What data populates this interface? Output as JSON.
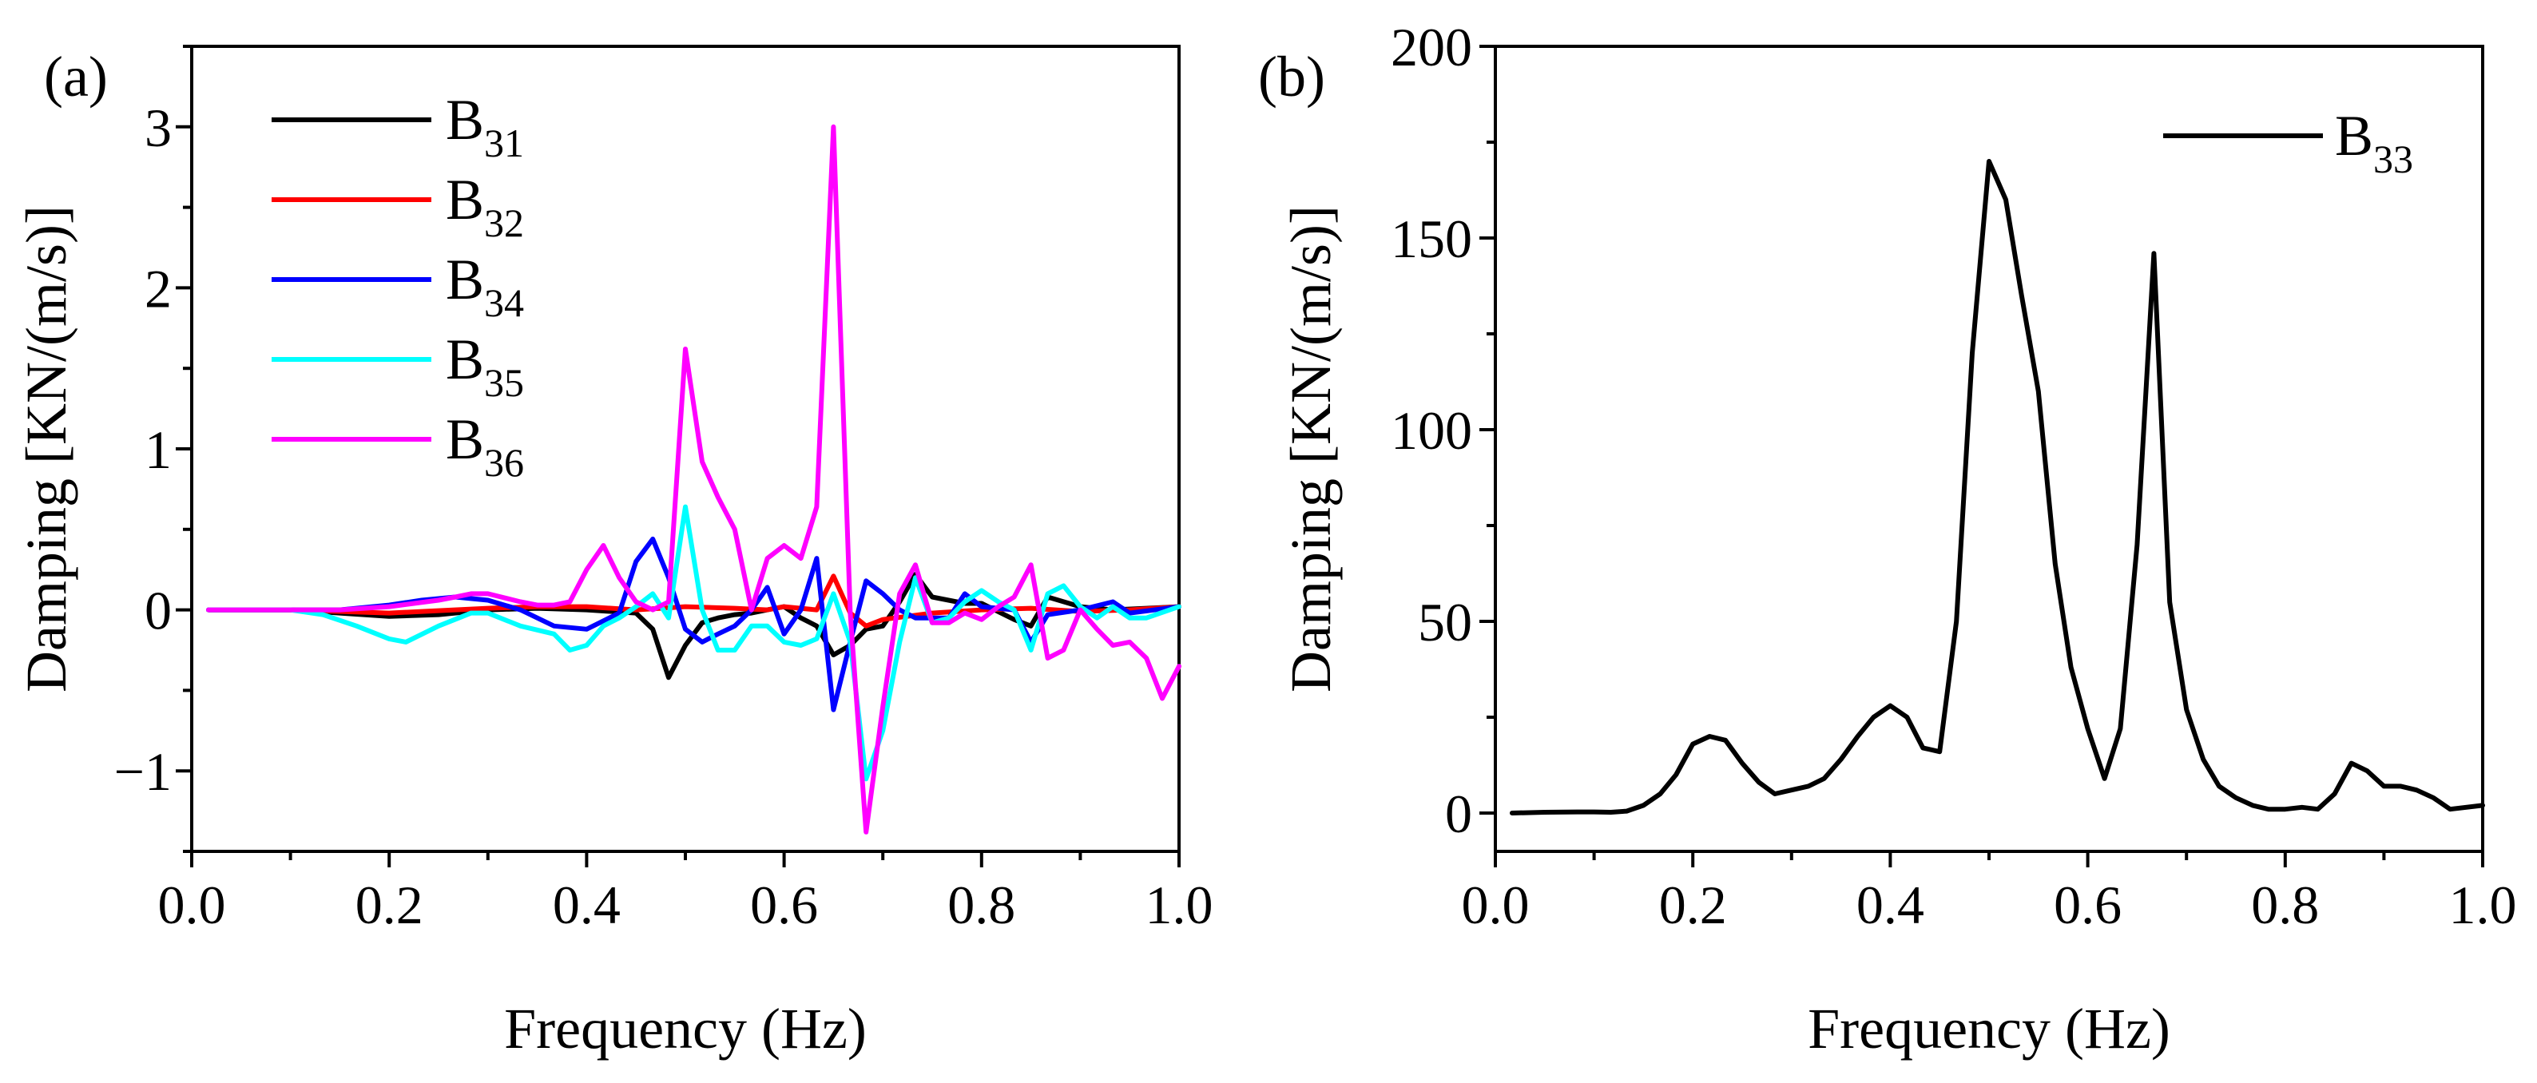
{
  "chart_data": [
    {
      "panel": "(a)",
      "type": "line",
      "xlabel": "Frequency (Hz)",
      "ylabel": "Damping [KN/(m/s)]",
      "xlim": [
        0.0,
        1.0
      ],
      "ylim": [
        -1.5,
        3.5
      ],
      "xticks": [
        "0.0",
        "0.2",
        "0.4",
        "0.6",
        "0.8",
        "1.0"
      ],
      "yticks": [
        "−1",
        "0",
        "1",
        "2",
        "3"
      ],
      "ytick_values": [
        -1,
        0,
        1,
        2,
        3
      ],
      "xtick_values": [
        0.0,
        0.2,
        0.4,
        0.6,
        0.8,
        1.0
      ],
      "legend_position": "top-left",
      "series": [
        {
          "name": "B31",
          "base": "B",
          "sub": "31",
          "color": "#000000",
          "x": [
            0.017,
            0.1,
            0.15,
            0.2,
            0.25,
            0.3,
            0.35,
            0.4,
            0.45,
            0.467,
            0.483,
            0.5,
            0.517,
            0.533,
            0.55,
            0.567,
            0.583,
            0.6,
            0.617,
            0.633,
            0.65,
            0.667,
            0.683,
            0.7,
            0.717,
            0.733,
            0.75,
            0.783,
            0.8,
            0.833,
            0.85,
            0.867,
            0.9,
            0.933,
            0.967,
            1.0
          ],
          "values": [
            0,
            0,
            -0.02,
            -0.04,
            -0.03,
            0.0,
            0.01,
            0.0,
            -0.02,
            -0.12,
            -0.42,
            -0.22,
            -0.08,
            -0.05,
            -0.03,
            -0.02,
            0.0,
            0.02,
            -0.05,
            -0.1,
            -0.28,
            -0.22,
            -0.12,
            -0.1,
            0.05,
            0.22,
            0.08,
            0.04,
            0.04,
            -0.06,
            -0.1,
            0.08,
            0.02,
            0.0,
            0.01,
            0.02
          ]
        },
        {
          "name": "B32",
          "base": "B",
          "sub": "32",
          "color": "#ff0000",
          "x": [
            0.017,
            0.1,
            0.2,
            0.3,
            0.35,
            0.4,
            0.45,
            0.5,
            0.55,
            0.583,
            0.6,
            0.633,
            0.65,
            0.667,
            0.683,
            0.7,
            0.75,
            0.8,
            0.85,
            0.9,
            0.95,
            1.0
          ],
          "values": [
            0,
            0,
            -0.02,
            0.01,
            0.02,
            0.02,
            0.0,
            0.02,
            0.01,
            0.0,
            0.02,
            0.0,
            0.21,
            -0.02,
            -0.1,
            -0.06,
            -0.02,
            0.0,
            0.01,
            -0.01,
            0.0,
            0.02
          ]
        },
        {
          "name": "B34",
          "base": "B",
          "sub": "34",
          "color": "#0000ff",
          "x": [
            0.017,
            0.1,
            0.15,
            0.2,
            0.233,
            0.267,
            0.3,
            0.333,
            0.367,
            0.4,
            0.433,
            0.45,
            0.467,
            0.483,
            0.5,
            0.517,
            0.533,
            0.55,
            0.567,
            0.583,
            0.6,
            0.617,
            0.633,
            0.65,
            0.667,
            0.683,
            0.7,
            0.717,
            0.733,
            0.767,
            0.783,
            0.8,
            0.833,
            0.85,
            0.867,
            0.9,
            0.933,
            0.95,
            1.0
          ],
          "values": [
            0,
            0,
            0.0,
            0.03,
            0.06,
            0.08,
            0.06,
            0.0,
            -0.1,
            -0.12,
            -0.02,
            0.3,
            0.44,
            0.2,
            -0.12,
            -0.2,
            -0.15,
            -0.1,
            0.0,
            0.14,
            -0.15,
            0.0,
            0.32,
            -0.62,
            -0.2,
            0.18,
            0.1,
            0.0,
            -0.05,
            -0.05,
            0.1,
            0.02,
            0.0,
            -0.2,
            -0.03,
            0.0,
            0.05,
            -0.02,
            0.02
          ]
        },
        {
          "name": "B35",
          "base": "B",
          "sub": "35",
          "color": "#00ffff",
          "x": [
            0.017,
            0.1,
            0.133,
            0.167,
            0.2,
            0.217,
            0.25,
            0.283,
            0.3,
            0.333,
            0.367,
            0.383,
            0.4,
            0.417,
            0.433,
            0.45,
            0.467,
            0.483,
            0.5,
            0.517,
            0.533,
            0.55,
            0.567,
            0.583,
            0.6,
            0.617,
            0.633,
            0.65,
            0.667,
            0.683,
            0.7,
            0.717,
            0.733,
            0.75,
            0.767,
            0.783,
            0.8,
            0.817,
            0.833,
            0.85,
            0.867,
            0.883,
            0.9,
            0.917,
            0.933,
            0.95,
            0.967,
            1.0
          ],
          "values": [
            0,
            0,
            -0.03,
            -0.1,
            -0.18,
            -0.2,
            -0.1,
            -0.02,
            -0.02,
            -0.1,
            -0.15,
            -0.25,
            -0.22,
            -0.1,
            -0.05,
            0.02,
            0.1,
            -0.05,
            0.64,
            0.0,
            -0.25,
            -0.25,
            -0.1,
            -0.1,
            -0.2,
            -0.22,
            -0.18,
            0.1,
            -0.2,
            -1.05,
            -0.75,
            -0.2,
            0.2,
            -0.08,
            -0.05,
            0.05,
            0.12,
            0.05,
            0.0,
            -0.25,
            0.1,
            0.15,
            0.02,
            -0.05,
            0.02,
            -0.05,
            -0.05,
            0.02
          ]
        },
        {
          "name": "B36",
          "base": "B",
          "sub": "36",
          "color": "#ff00ff",
          "x": [
            0.017,
            0.1,
            0.15,
            0.2,
            0.25,
            0.267,
            0.283,
            0.3,
            0.333,
            0.35,
            0.367,
            0.383,
            0.4,
            0.417,
            0.433,
            0.45,
            0.467,
            0.483,
            0.5,
            0.517,
            0.533,
            0.55,
            0.567,
            0.583,
            0.6,
            0.617,
            0.633,
            0.65,
            0.667,
            0.683,
            0.7,
            0.717,
            0.733,
            0.75,
            0.767,
            0.783,
            0.8,
            0.817,
            0.833,
            0.85,
            0.867,
            0.883,
            0.9,
            0.917,
            0.933,
            0.95,
            0.967,
            0.983,
            1.0
          ],
          "values": [
            0,
            0,
            0.0,
            0.02,
            0.06,
            0.08,
            0.1,
            0.1,
            0.05,
            0.03,
            0.03,
            0.05,
            0.25,
            0.4,
            0.2,
            0.05,
            0.0,
            0.05,
            1.62,
            0.92,
            0.7,
            0.5,
            0.0,
            0.32,
            0.4,
            0.32,
            0.64,
            3.0,
            -0.02,
            -1.38,
            -0.6,
            0.1,
            0.28,
            -0.08,
            -0.08,
            -0.02,
            -0.06,
            0.02,
            0.08,
            0.28,
            -0.3,
            -0.25,
            0.0,
            -0.12,
            -0.22,
            -0.2,
            -0.3,
            -0.55,
            -0.35
          ]
        }
      ]
    },
    {
      "panel": "(b)",
      "type": "line",
      "xlabel": "Frequency (Hz)",
      "ylabel": "Damping [KN/(m/s)]",
      "xlim": [
        0.0,
        1.0
      ],
      "ylim": [
        -10,
        200
      ],
      "xticks": [
        "0.0",
        "0.2",
        "0.4",
        "0.6",
        "0.8",
        "1.0"
      ],
      "yticks": [
        "0",
        "50",
        "100",
        "150",
        "200"
      ],
      "ytick_values": [
        0,
        50,
        100,
        150,
        200
      ],
      "xtick_values": [
        0.0,
        0.2,
        0.4,
        0.6,
        0.8,
        1.0
      ],
      "legend_position": "top-right",
      "series": [
        {
          "name": "B33",
          "base": "B",
          "sub": "33",
          "color": "#000000",
          "x": [
            0.017,
            0.05,
            0.083,
            0.1,
            0.117,
            0.133,
            0.15,
            0.167,
            0.183,
            0.2,
            0.217,
            0.233,
            0.25,
            0.267,
            0.283,
            0.3,
            0.317,
            0.333,
            0.35,
            0.367,
            0.383,
            0.4,
            0.417,
            0.433,
            0.45,
            0.467,
            0.483,
            0.5,
            0.517,
            0.533,
            0.55,
            0.567,
            0.583,
            0.6,
            0.617,
            0.633,
            0.65,
            0.667,
            0.683,
            0.7,
            0.717,
            0.733,
            0.75,
            0.767,
            0.783,
            0.8,
            0.817,
            0.833,
            0.85,
            0.867,
            0.883,
            0.9,
            0.917,
            0.933,
            0.95,
            0.967,
            1.0
          ],
          "values": [
            0,
            0.2,
            0.3,
            0.3,
            0.2,
            0.5,
            2,
            5,
            10,
            18,
            20,
            19,
            13,
            8,
            5,
            6,
            7,
            9,
            14,
            20,
            25,
            28,
            25,
            17,
            16,
            50,
            120,
            170,
            160,
            135,
            110,
            65,
            38,
            22,
            9,
            22,
            70,
            146,
            55,
            27,
            14,
            7,
            4,
            2,
            1,
            1,
            1.5,
            1,
            5,
            13,
            11,
            7,
            7,
            6,
            4,
            1,
            2
          ]
        }
      ]
    }
  ]
}
